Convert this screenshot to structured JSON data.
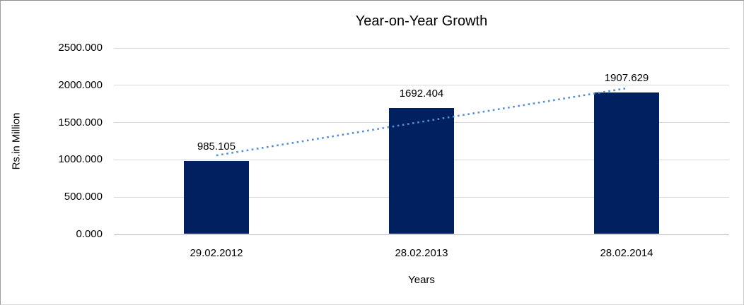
{
  "chart_data": {
    "type": "bar",
    "title": "Year-on-Year Growth",
    "xlabel": "Years",
    "ylabel": "Rs.in Million",
    "categories": [
      "29.02.2012",
      "28.02.2013",
      "28.02.2014"
    ],
    "values": [
      985.105,
      1692.404,
      1907.629
    ],
    "value_labels": [
      "985.105",
      "1692.404",
      "1907.629"
    ],
    "ylim": [
      0,
      2500
    ],
    "ytick_step": 500,
    "ytick_labels": [
      "0.000",
      "500.000",
      "1000.000",
      "1500.000",
      "2000.000",
      "2500.000"
    ],
    "grid": "horizontal",
    "legend": "none",
    "trendline": {
      "type": "linear",
      "style": "dotted",
      "start_value": 1060,
      "end_value": 1960
    },
    "colors": {
      "bar": "#002060",
      "trendline": "#558ED5",
      "gridline": "#D9D9D9",
      "axis_line": "#BFBFBF",
      "text": "#000000",
      "border": "#A6A6A6",
      "background": "#FFFFFF"
    }
  }
}
